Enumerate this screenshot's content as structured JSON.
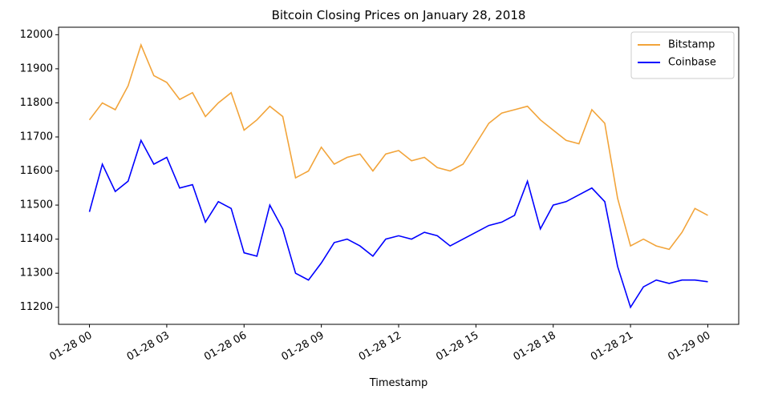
{
  "chart_data": {
    "type": "line",
    "title": "Bitcoin Closing Prices on January 28, 2018",
    "x_label": "Timestamp",
    "x": [
      0,
      0.5,
      1,
      1.5,
      2,
      2.5,
      3,
      3.5,
      4,
      4.5,
      5,
      5.5,
      6,
      6.5,
      7,
      7.5,
      8,
      8.5,
      9,
      9.5,
      10,
      10.5,
      11,
      11.5,
      12,
      12.5,
      13,
      13.5,
      14,
      14.5,
      15,
      15.5,
      16,
      16.5,
      17,
      17.5,
      18,
      18.5,
      19,
      19.5,
      20,
      20.5,
      21,
      21.5,
      22,
      22.5,
      23,
      23.5,
      24
    ],
    "series": [
      {
        "name": "Bitstamp",
        "color": "#f2a43a",
        "values": [
          11750,
          11800,
          11780,
          11850,
          11970,
          11880,
          11860,
          11810,
          11830,
          11760,
          11800,
          11830,
          11720,
          11750,
          11790,
          11760,
          11580,
          11600,
          11670,
          11620,
          11640,
          11650,
          11600,
          11650,
          11660,
          11630,
          11640,
          11610,
          11600,
          11620,
          11680,
          11740,
          11770,
          11780,
          11790,
          11750,
          11720,
          11690,
          11680,
          11780,
          11740,
          11520,
          11380,
          11400,
          11380,
          11370,
          11420,
          11490,
          11470
        ]
      },
      {
        "name": "Coinbase",
        "color": "#0000ff",
        "values": [
          11480,
          11620,
          11540,
          11570,
          11690,
          11620,
          11640,
          11550,
          11560,
          11450,
          11510,
          11490,
          11360,
          11350,
          11500,
          11430,
          11300,
          11280,
          11330,
          11390,
          11400,
          11380,
          11350,
          11400,
          11410,
          11400,
          11420,
          11410,
          11380,
          11400,
          11420,
          11440,
          11450,
          11470,
          11570,
          11430,
          11500,
          11510,
          11530,
          11550,
          11510,
          11320,
          11200,
          11260,
          11280,
          11270,
          11280,
          11280,
          11275
        ]
      }
    ],
    "xlim": [
      -1.2,
      25.2
    ],
    "xticks": [
      {
        "value": 0,
        "label": "01-28 00"
      },
      {
        "value": 3,
        "label": "01-28 03"
      },
      {
        "value": 6,
        "label": "01-28 06"
      },
      {
        "value": 9,
        "label": "01-28 09"
      },
      {
        "value": 12,
        "label": "01-28 12"
      },
      {
        "value": 15,
        "label": "01-28 15"
      },
      {
        "value": 18,
        "label": "01-28 18"
      },
      {
        "value": 21,
        "label": "01-28 21"
      },
      {
        "value": 24,
        "label": "01-29 00"
      }
    ],
    "ylim": [
      11150,
      12022
    ],
    "yticks": [
      11200,
      11300,
      11400,
      11500,
      11600,
      11700,
      11800,
      11900,
      12000
    ],
    "legend": "upper right"
  }
}
